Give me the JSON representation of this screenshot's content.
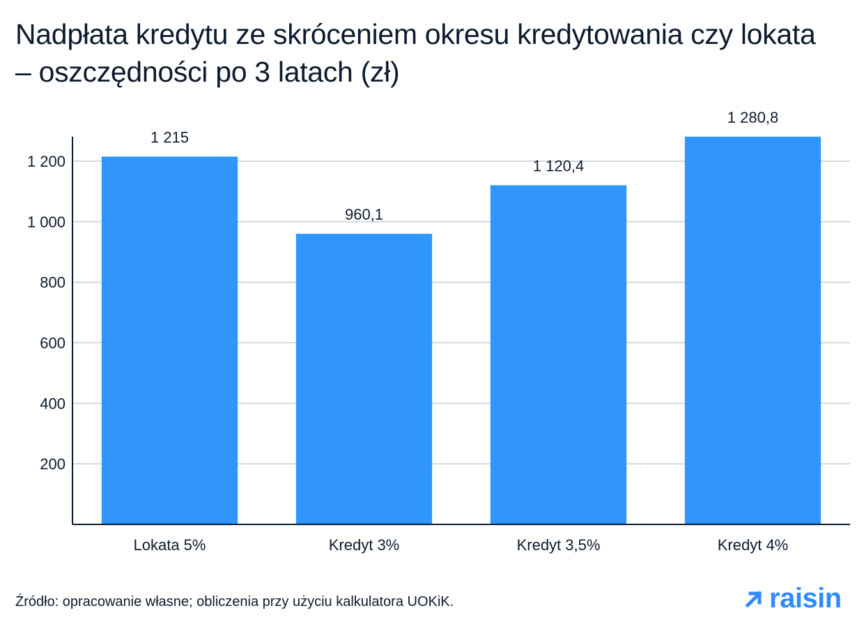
{
  "title": "Nadpłata kredytu ze skróceniem okresu kredytowania czy lokata – oszczędności po 3 latach (zł)",
  "source": "Źródło: opracowanie własne; obliczenia przy użyciu kalkulatora UOKiK.",
  "brand": {
    "name": "raisin",
    "icon": "arrow-up-right-icon"
  },
  "colors": {
    "bar": "#3096fe",
    "grid": "#c8ccd3",
    "axis": "#0d1b2e",
    "brand": "#2f8cff"
  },
  "chart_data": {
    "type": "bar",
    "title": "Nadpłata kredytu ze skróceniem okresu kredytowania czy lokata – oszczędności po 3 latach (zł)",
    "categories": [
      "Lokata 5%",
      "Kredyt 3%",
      "Kredyt 3,5%",
      "Kredyt 4%"
    ],
    "values": [
      1215,
      960.1,
      1120.4,
      1280.8
    ],
    "value_labels": [
      "1 215",
      "960,1",
      "1 120,4",
      "1 280,8"
    ],
    "yticks": [
      200,
      400,
      600,
      800,
      1000,
      1200
    ],
    "ytick_labels": [
      "200",
      "400",
      "600",
      "800",
      "1 000",
      "1 200"
    ],
    "ylim": [
      0,
      1280.8
    ],
    "grid": true,
    "legend": "none"
  }
}
